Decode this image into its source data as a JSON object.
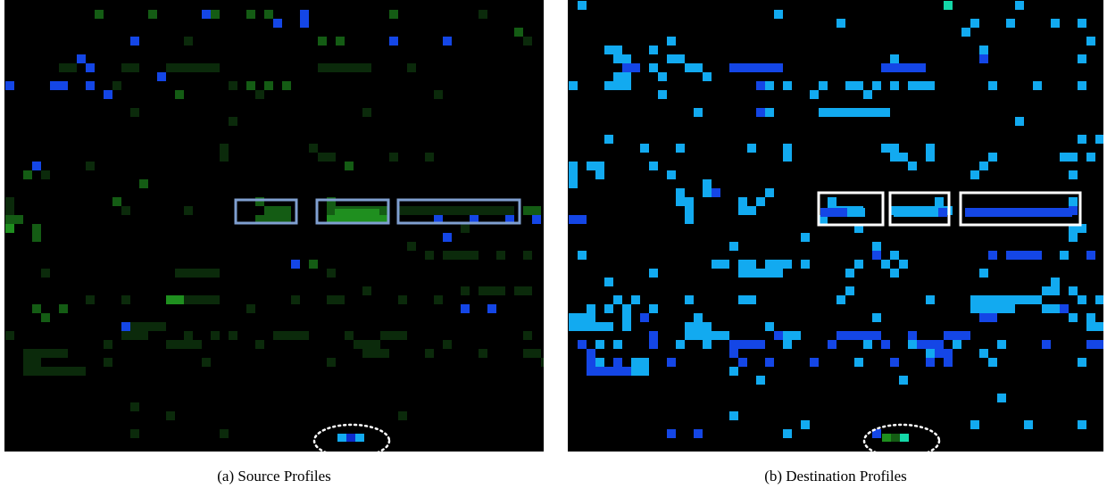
{
  "figure": {
    "panel_a": {
      "caption": "(a)  Source Profiles"
    },
    "panel_b": {
      "caption": "(b)  Destination Profiles"
    }
  },
  "colors": {
    "background": "#000000",
    "dark_green": "#0b2a0b",
    "mid_green": "#145c14",
    "bright_green": "#1f8f1f",
    "dark_blue": "#0d2bcc",
    "blue": "#1446e6",
    "light_blue": "#12aaf0",
    "teal": "#14d8a8",
    "highlight_box_a": "#7f9fd0",
    "highlight_box_b": "#ffffff"
  }
}
